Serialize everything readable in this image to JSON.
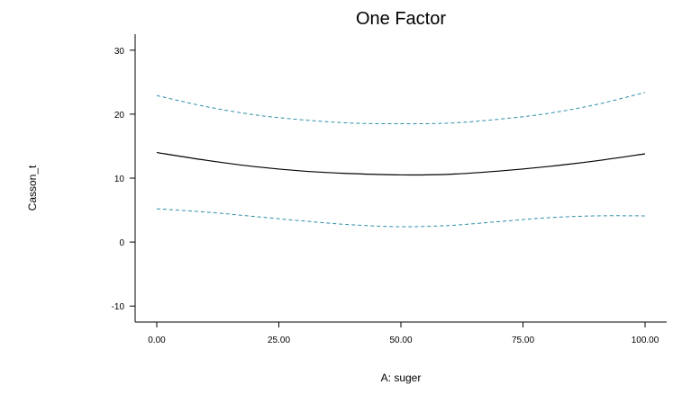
{
  "chart_data": {
    "type": "line",
    "title": "One Factor",
    "xlabel": "A: suger",
    "ylabel": "Casson_t",
    "xlim": [
      0,
      100
    ],
    "ylim": [
      -12.5,
      32.5
    ],
    "xticks": [
      0,
      25,
      50,
      75,
      100
    ],
    "xtick_labels": [
      "0.00",
      "25.00",
      "50.00",
      "75.00",
      "100.00"
    ],
    "yticks": [
      -10,
      0,
      10,
      20,
      30
    ],
    "ytick_labels": [
      "-10",
      "0",
      "10",
      "20",
      "30"
    ],
    "grid": false,
    "legend": "none",
    "x": [
      0,
      10,
      20,
      30,
      40,
      50,
      60,
      70,
      80,
      90,
      100
    ],
    "series": [
      {
        "style": "dashed",
        "color": "#2e8fa8",
        "values": [
          22.9,
          21.2,
          19.9,
          19.1,
          18.6,
          18.5,
          18.6,
          19.2,
          20.1,
          21.5,
          23.4
        ]
      },
      {
        "style": "solid",
        "color": "#000000",
        "values": [
          14.0,
          12.8,
          11.8,
          11.1,
          10.7,
          10.5,
          10.6,
          11.1,
          11.8,
          12.7,
          13.8
        ]
      },
      {
        "style": "dashed",
        "color": "#2e8fa8",
        "values": [
          5.2,
          4.7,
          4.0,
          3.3,
          2.7,
          2.4,
          2.6,
          3.2,
          3.8,
          4.1,
          4.1
        ]
      }
    ]
  }
}
